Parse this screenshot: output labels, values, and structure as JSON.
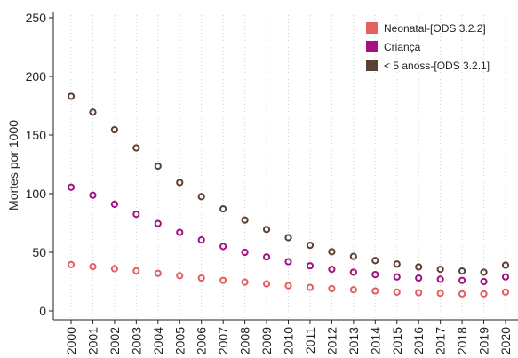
{
  "chart_data": {
    "type": "scatter",
    "title": "",
    "xlabel": "",
    "ylabel": "Mortes por 1000",
    "ylim": [
      0,
      250
    ],
    "yticks": [
      0,
      50,
      100,
      150,
      200,
      250
    ],
    "x": [
      "2000",
      "2001",
      "2002",
      "2003",
      "2004",
      "2005",
      "2006",
      "2007",
      "2008",
      "2009",
      "2010",
      "2011",
      "2012",
      "2013",
      "2014",
      "2015",
      "2016",
      "2017",
      "2018",
      "2019",
      "2020"
    ],
    "grid": "vertical dotted",
    "legend_position": "top-right",
    "series": [
      {
        "name": "Neonatal-[ODS 3.2.2]",
        "color": "#e45f5f",
        "values": [
          39.5,
          37.8,
          36.0,
          34.2,
          32.0,
          30.0,
          28.0,
          26.0,
          24.5,
          23.0,
          21.5,
          20.0,
          19.0,
          18.0,
          17.0,
          16.0,
          15.5,
          15.0,
          14.5,
          14.5,
          16.0
        ]
      },
      {
        "name": "Criança",
        "color": "#a3127f",
        "values": [
          105.5,
          98.7,
          91.0,
          82.5,
          74.5,
          67.0,
          60.5,
          55.0,
          50.0,
          46.0,
          42.0,
          38.5,
          35.5,
          33.0,
          31.0,
          29.0,
          28.0,
          27.0,
          26.0,
          25.0,
          29.0
        ]
      },
      {
        "name": "< 5 anoss-[ODS 3.2.1]",
        "color": "#5c4033",
        "values": [
          183.0,
          169.5,
          154.5,
          139.0,
          123.5,
          109.5,
          97.5,
          87.0,
          77.5,
          69.5,
          62.5,
          56.0,
          50.5,
          46.5,
          43.0,
          40.0,
          37.5,
          35.5,
          34.0,
          33.0,
          39.0
        ]
      }
    ]
  }
}
